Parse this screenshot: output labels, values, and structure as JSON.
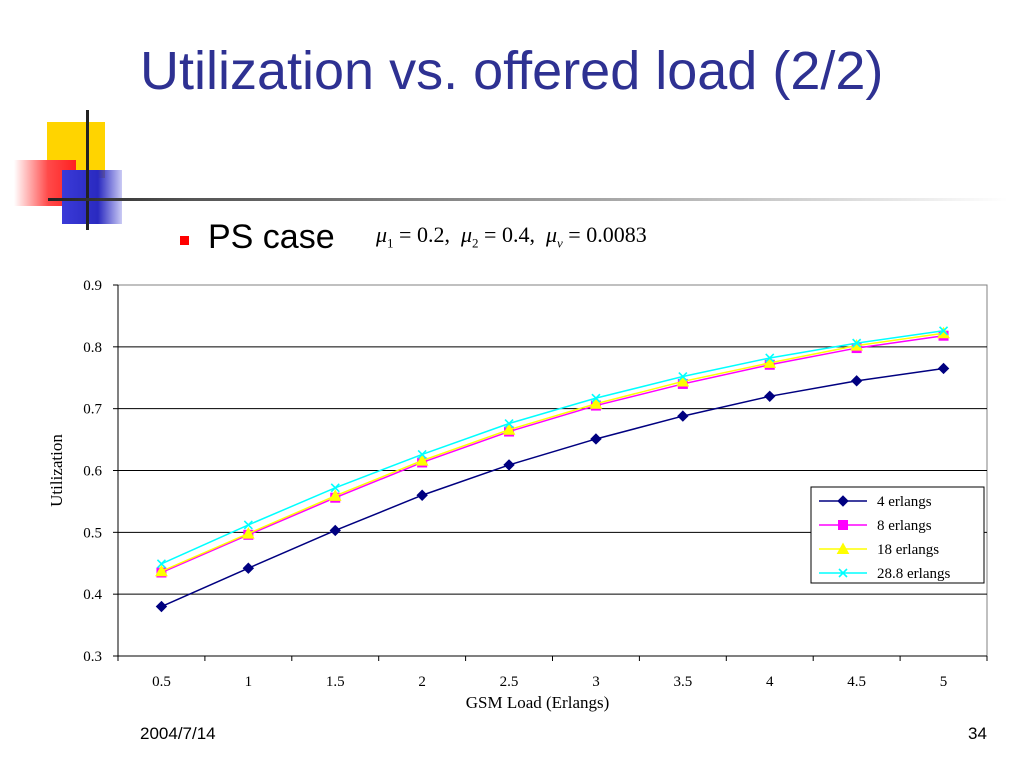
{
  "slide": {
    "title": "Utilization vs. offered load (2/2)",
    "bullet": "PS case",
    "formula": {
      "mu1": "0.2",
      "mu2": "0.4",
      "muv": "0.0083"
    },
    "date": "2004/7/14",
    "page": "34",
    "colors": {
      "title": "#2e3192",
      "bullet": "#ff0000"
    }
  },
  "chart_data": {
    "type": "line",
    "x": [
      0.5,
      1,
      1.5,
      2,
      2.5,
      3,
      3.5,
      4,
      4.5,
      5
    ],
    "x_tick_labels": [
      "0.5",
      "1",
      "1.5",
      "2",
      "2.5",
      "3",
      "3.5",
      "4",
      "4.5",
      "5"
    ],
    "y_tick_labels": [
      "0.3",
      "0.4",
      "0.5",
      "0.6",
      "0.7",
      "0.8",
      "0.9"
    ],
    "xlabel": "GSM Load (Erlangs)",
    "ylabel": "Utilization",
    "ylim": [
      0.3,
      0.9
    ],
    "grid": "horizontal",
    "legend_position": "right",
    "series": [
      {
        "name": "4 erlangs",
        "marker": "diamond",
        "color": "#000080",
        "values": [
          0.38,
          0.442,
          0.503,
          0.56,
          0.609,
          0.651,
          0.688,
          0.72,
          0.745,
          0.765
        ]
      },
      {
        "name": "8 erlangs",
        "marker": "square",
        "color": "#ff00ff",
        "values": [
          0.435,
          0.496,
          0.556,
          0.613,
          0.663,
          0.705,
          0.74,
          0.771,
          0.798,
          0.818
        ]
      },
      {
        "name": "18 erlangs",
        "marker": "triangle",
        "color": "#ffff00",
        "values": [
          0.437,
          0.498,
          0.559,
          0.616,
          0.666,
          0.708,
          0.744,
          0.774,
          0.802,
          0.822
        ]
      },
      {
        "name": "28.8 erlangs",
        "marker": "x",
        "color": "#00ffff",
        "values": [
          0.449,
          0.512,
          0.572,
          0.626,
          0.676,
          0.717,
          0.752,
          0.782,
          0.806,
          0.826
        ]
      }
    ]
  }
}
